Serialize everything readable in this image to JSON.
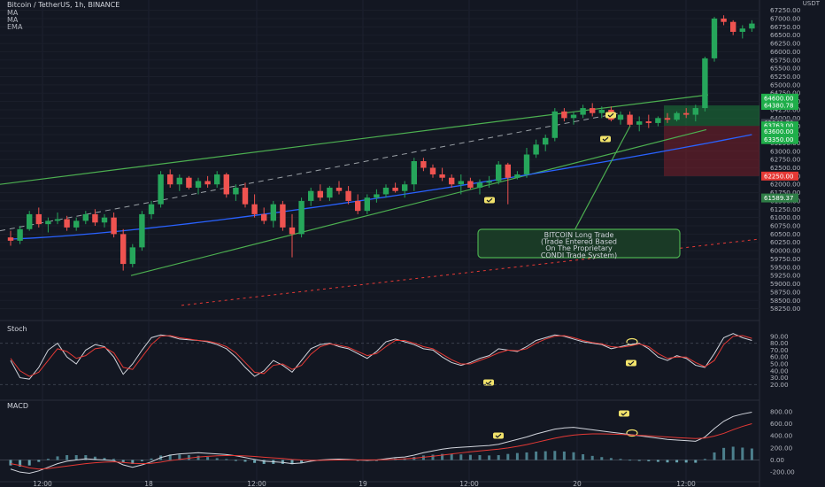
{
  "header": {
    "symbol_line": "Bitcoin / TetherUS, 1h, BINANCE",
    "indicators": [
      "MA",
      "MA",
      "EMA"
    ]
  },
  "price_axis": {
    "unit_label": "USDT",
    "ticks": [
      "67250.00",
      "67000.00",
      "66750.00",
      "66500.00",
      "66250.00",
      "66000.00",
      "65750.00",
      "65500.00",
      "65250.00",
      "65000.00",
      "64750.00",
      "64500.00",
      "64250.00",
      "64000.00",
      "63750.00",
      "63500.00",
      "63250.00",
      "63000.00",
      "62750.00",
      "62500.00",
      "62250.00",
      "62000.00",
      "61750.00",
      "61500.00",
      "61250.00",
      "61000.00",
      "60750.00",
      "60500.00",
      "60250.00",
      "60000.00",
      "59750.00",
      "59500.00",
      "59250.00",
      "59000.00",
      "58750.00",
      "58500.00",
      "58250.00"
    ],
    "badges": [
      {
        "label": "64600.00",
        "value": 64600,
        "color": "#1fae4a"
      },
      {
        "label": "64380.78",
        "value": 64380.78,
        "color": "#1fae4a"
      },
      {
        "label": "63841.70",
        "value": 63841.7,
        "color": "#3a3f4c"
      },
      {
        "label": "63763.00",
        "value": 63763,
        "color": "#1fae4a"
      },
      {
        "label": "63600.00",
        "value": 63600,
        "color": "#1fae4a"
      },
      {
        "label": "63350.00",
        "value": 63350,
        "color": "#1fae4a"
      },
      {
        "label": "62250.00",
        "value": 62250,
        "color": "#e53935"
      },
      {
        "label": "61589.37",
        "value": 61589.37,
        "color": "#2e7d46"
      }
    ]
  },
  "time_axis": {
    "labels": [
      "12:00",
      "18",
      "12:00",
      "19",
      "12:00",
      "20",
      "12:00"
    ]
  },
  "stoch_pane": {
    "title": "Stoch",
    "ticks": [
      "90.00",
      "80.00",
      "70.00",
      "60.00",
      "50.00",
      "40.00",
      "30.00",
      "20.00"
    ]
  },
  "macd_pane": {
    "title": "MACD",
    "ticks": [
      "800.00",
      "600.00",
      "400.00",
      "200.00",
      "0.00",
      "-200.00"
    ]
  },
  "annotation": {
    "lines": [
      "BITCOIN Long Trade",
      "(Trade Entered Based",
      "On The Proprietary",
      "CONDI Trade System)"
    ]
  },
  "colors": {
    "bull": "#26a65b",
    "bear": "#ef5350",
    "trend": "#4caf50",
    "ema": "#2962ff",
    "box_profit": "#1b7a3a",
    "box_loss": "#7a1f2a",
    "marker": "#f2e36b"
  },
  "chart_data": {
    "type": "candlestick",
    "symbol": "Bitcoin / TetherUS",
    "interval": "1h",
    "exchange": "BINANCE",
    "ylim": [
      58000,
      67400
    ],
    "candles": [
      [
        60400,
        60600,
        60150,
        60300
      ],
      [
        60300,
        60750,
        60200,
        60650
      ],
      [
        60650,
        61200,
        60600,
        61100
      ],
      [
        61100,
        61300,
        60700,
        60800
      ],
      [
        60800,
        61000,
        60550,
        60900
      ],
      [
        60900,
        61150,
        60800,
        60950
      ],
      [
        60950,
        61050,
        60600,
        60700
      ],
      [
        60700,
        61000,
        60600,
        60900
      ],
      [
        60900,
        61200,
        60800,
        61100
      ],
      [
        61100,
        61250,
        60750,
        60850
      ],
      [
        60850,
        61100,
        60700,
        61000
      ],
      [
        61000,
        61150,
        60400,
        60500
      ],
      [
        60500,
        60650,
        59400,
        59600
      ],
      [
        59600,
        60200,
        59500,
        60100
      ],
      [
        60100,
        61200,
        60000,
        61100
      ],
      [
        61100,
        61500,
        60950,
        61400
      ],
      [
        61400,
        62400,
        61300,
        62300
      ],
      [
        62300,
        62450,
        61900,
        62000
      ],
      [
        62000,
        62300,
        61800,
        62200
      ],
      [
        62200,
        62250,
        61850,
        61900
      ],
      [
        61900,
        62200,
        61700,
        62100
      ],
      [
        62100,
        62250,
        61900,
        62000
      ],
      [
        62000,
        62400,
        61900,
        62300
      ],
      [
        62300,
        62350,
        61600,
        61700
      ],
      [
        61700,
        62000,
        61500,
        61900
      ],
      [
        61900,
        62050,
        61300,
        61400
      ],
      [
        61400,
        61700,
        61000,
        61100
      ],
      [
        61100,
        61300,
        60800,
        60900
      ],
      [
        60900,
        61500,
        60700,
        61400
      ],
      [
        61400,
        61500,
        60600,
        60700
      ],
      [
        60700,
        61100,
        59800,
        60500
      ],
      [
        60500,
        61600,
        60400,
        61500
      ],
      [
        61500,
        61900,
        61350,
        61800
      ],
      [
        61800,
        62000,
        61500,
        61600
      ],
      [
        61600,
        61950,
        61500,
        61900
      ],
      [
        61900,
        62100,
        61700,
        61800
      ],
      [
        61800,
        61950,
        61400,
        61500
      ],
      [
        61500,
        61700,
        61100,
        61200
      ],
      [
        61200,
        61700,
        61100,
        61600
      ],
      [
        61600,
        61850,
        61450,
        61700
      ],
      [
        61700,
        62000,
        61600,
        61900
      ],
      [
        61900,
        62050,
        61750,
        61800
      ],
      [
        61800,
        62100,
        61600,
        62000
      ],
      [
        62000,
        62800,
        61800,
        62700
      ],
      [
        62700,
        62800,
        62400,
        62500
      ],
      [
        62500,
        62600,
        62200,
        62300
      ],
      [
        62300,
        62500,
        62100,
        62200
      ],
      [
        62200,
        62300,
        61900,
        62000
      ],
      [
        62000,
        62300,
        61700,
        62100
      ],
      [
        62100,
        62200,
        61850,
        61900
      ],
      [
        61900,
        62150,
        61700,
        62050
      ],
      [
        62050,
        62250,
        61900,
        62100
      ],
      [
        62100,
        62700,
        62000,
        62600
      ],
      [
        62600,
        62650,
        61400,
        62200
      ],
      [
        62200,
        62400,
        62150,
        62300
      ],
      [
        62300,
        63100,
        62200,
        62900
      ],
      [
        62900,
        63350,
        62800,
        63200
      ],
      [
        63200,
        63500,
        63000,
        63400
      ],
      [
        63400,
        64300,
        63300,
        64200
      ],
      [
        64200,
        64300,
        63900,
        64000
      ],
      [
        64000,
        64200,
        63800,
        64100
      ],
      [
        64100,
        64400,
        64000,
        64300
      ],
      [
        64300,
        64450,
        64050,
        64150
      ],
      [
        64150,
        64350,
        64000,
        64250
      ],
      [
        64250,
        64350,
        63900,
        63950
      ],
      [
        63950,
        64200,
        63800,
        64100
      ],
      [
        64100,
        64200,
        63750,
        63800
      ],
      [
        63800,
        64050,
        63600,
        63900
      ],
      [
        63900,
        64100,
        63700,
        63850
      ],
      [
        63850,
        64050,
        63750,
        64000
      ],
      [
        64000,
        64150,
        63850,
        63950
      ],
      [
        63950,
        64200,
        63900,
        64150
      ],
      [
        64150,
        64300,
        64000,
        64100
      ],
      [
        64100,
        64400,
        63900,
        64300
      ],
      [
        64300,
        65850,
        64200,
        65800
      ],
      [
        65800,
        67050,
        65700,
        67000
      ],
      [
        67000,
        67100,
        66800,
        66900
      ],
      [
        66900,
        66950,
        66500,
        66600
      ],
      [
        66600,
        66800,
        66400,
        66700
      ],
      [
        66700,
        66950,
        66600,
        66850
      ]
    ],
    "stoch": [
      [
        55,
        58
      ],
      [
        30,
        40
      ],
      [
        28,
        32
      ],
      [
        45,
        38
      ],
      [
        70,
        55
      ],
      [
        80,
        72
      ],
      [
        60,
        68
      ],
      [
        50,
        58
      ],
      [
        70,
        62
      ],
      [
        78,
        72
      ],
      [
        75,
        74
      ],
      [
        60,
        66
      ],
      [
        35,
        45
      ],
      [
        50,
        42
      ],
      [
        70,
        60
      ],
      [
        88,
        78
      ],
      [
        92,
        90
      ],
      [
        90,
        91
      ],
      [
        86,
        88
      ],
      [
        85,
        86
      ],
      [
        84,
        84
      ],
      [
        82,
        83
      ],
      [
        78,
        80
      ],
      [
        72,
        75
      ],
      [
        60,
        66
      ],
      [
        45,
        52
      ],
      [
        32,
        38
      ],
      [
        40,
        36
      ],
      [
        55,
        48
      ],
      [
        48,
        50
      ],
      [
        38,
        42
      ],
      [
        55,
        48
      ],
      [
        72,
        64
      ],
      [
        78,
        75
      ],
      [
        80,
        79
      ],
      [
        75,
        77
      ],
      [
        72,
        74
      ],
      [
        65,
        68
      ],
      [
        58,
        62
      ],
      [
        68,
        65
      ],
      [
        82,
        75
      ],
      [
        86,
        84
      ],
      [
        82,
        84
      ],
      [
        78,
        80
      ],
      [
        72,
        75
      ],
      [
        70,
        72
      ],
      [
        60,
        64
      ],
      [
        52,
        56
      ],
      [
        48,
        50
      ],
      [
        52,
        50
      ],
      [
        58,
        55
      ],
      [
        62,
        60
      ],
      [
        72,
        66
      ],
      [
        70,
        70
      ],
      [
        68,
        69
      ],
      [
        75,
        72
      ],
      [
        84,
        80
      ],
      [
        88,
        86
      ],
      [
        92,
        90
      ],
      [
        90,
        91
      ],
      [
        86,
        88
      ],
      [
        82,
        84
      ],
      [
        80,
        81
      ],
      [
        78,
        79
      ],
      [
        72,
        75
      ],
      [
        75,
        74
      ],
      [
        78,
        76
      ],
      [
        80,
        79
      ],
      [
        72,
        75
      ],
      [
        60,
        65
      ],
      [
        55,
        58
      ],
      [
        62,
        60
      ],
      [
        58,
        60
      ],
      [
        48,
        52
      ],
      [
        45,
        46
      ],
      [
        65,
        55
      ],
      [
        88,
        78
      ],
      [
        94,
        90
      ],
      [
        88,
        91
      ],
      [
        84,
        87
      ]
    ],
    "macd": [
      [
        -150,
        -60
      ],
      [
        -200,
        -90
      ],
      [
        -220,
        -130
      ],
      [
        -180,
        -150
      ],
      [
        -120,
        -140
      ],
      [
        -60,
        -120
      ],
      [
        -20,
        -100
      ],
      [
        0,
        -80
      ],
      [
        20,
        -60
      ],
      [
        10,
        -45
      ],
      [
        0,
        -35
      ],
      [
        -10,
        -30
      ],
      [
        -80,
        -40
      ],
      [
        -120,
        -55
      ],
      [
        -80,
        -60
      ],
      [
        -30,
        -55
      ],
      [
        40,
        -35
      ],
      [
        80,
        -10
      ],
      [
        100,
        10
      ],
      [
        110,
        30
      ],
      [
        120,
        50
      ],
      [
        110,
        60
      ],
      [
        100,
        70
      ],
      [
        90,
        74
      ],
      [
        70,
        74
      ],
      [
        40,
        68
      ],
      [
        10,
        58
      ],
      [
        -20,
        45
      ],
      [
        -30,
        35
      ],
      [
        -40,
        25
      ],
      [
        -60,
        10
      ],
      [
        -50,
        0
      ],
      [
        -20,
        -5
      ],
      [
        0,
        -5
      ],
      [
        10,
        -2
      ],
      [
        15,
        0
      ],
      [
        10,
        2
      ],
      [
        0,
        2
      ],
      [
        -5,
        1
      ],
      [
        0,
        1
      ],
      [
        20,
        5
      ],
      [
        40,
        12
      ],
      [
        50,
        20
      ],
      [
        80,
        30
      ],
      [
        120,
        45
      ],
      [
        150,
        62
      ],
      [
        180,
        80
      ],
      [
        200,
        100
      ],
      [
        210,
        118
      ],
      [
        220,
        135
      ],
      [
        230,
        150
      ],
      [
        240,
        165
      ],
      [
        260,
        180
      ],
      [
        300,
        200
      ],
      [
        340,
        225
      ],
      [
        380,
        255
      ],
      [
        430,
        290
      ],
      [
        470,
        325
      ],
      [
        510,
        360
      ],
      [
        530,
        390
      ],
      [
        540,
        412
      ],
      [
        520,
        425
      ],
      [
        500,
        432
      ],
      [
        480,
        432
      ],
      [
        460,
        428
      ],
      [
        440,
        422
      ],
      [
        420,
        415
      ],
      [
        400,
        408
      ],
      [
        380,
        400
      ],
      [
        360,
        390
      ],
      [
        340,
        380
      ],
      [
        330,
        370
      ],
      [
        320,
        362
      ],
      [
        310,
        355
      ],
      [
        380,
        362
      ],
      [
        520,
        395
      ],
      [
        640,
        440
      ],
      [
        720,
        500
      ],
      [
        760,
        555
      ],
      [
        790,
        600
      ]
    ],
    "ema_line": {
      "from": [
        0,
        60350
      ],
      "to": [
        79,
        63500
      ]
    },
    "trade": {
      "direction": "long",
      "entry_start_index": 70,
      "entry": 63763.0,
      "target": 64380.78,
      "stop": 62250.0
    }
  }
}
